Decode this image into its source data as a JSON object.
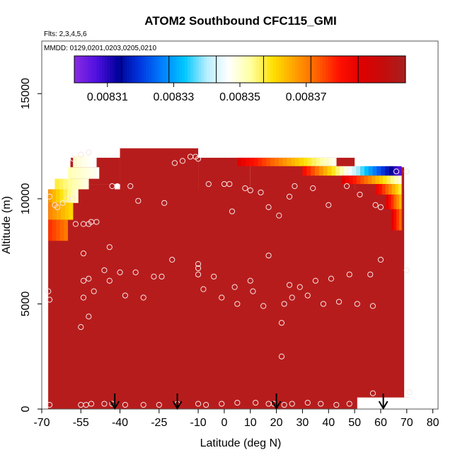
{
  "chart_data": {
    "type": "scatter",
    "title": "ATOM2 Southbound CFC115_GMI",
    "flights_label": "Flts: 2,3,4,5,6",
    "dates_label": "MMDD: 0129,0201,0203,0205,0210",
    "xlabel": "Latitude (deg N)",
    "ylabel": "Altitude (m)",
    "xlim": [
      -70,
      82
    ],
    "ylim": [
      0,
      17500
    ],
    "x_ticks": [
      "-70",
      "-55",
      "-40",
      "-25",
      "-10",
      "0",
      "10",
      "20",
      "30",
      "40",
      "50",
      "60",
      "70",
      "80"
    ],
    "x_tick_values": [
      -70,
      -55,
      -40,
      -25,
      -10,
      0,
      10,
      20,
      30,
      40,
      50,
      60,
      70,
      80
    ],
    "y_ticks": [
      "0",
      "5000",
      "10000",
      "15000"
    ],
    "y_tick_values": [
      0,
      5000,
      10000,
      15000
    ],
    "colorbar": {
      "ticks": [
        "0.00831",
        "0.00833",
        "0.00835",
        "0.00837"
      ],
      "tick_values": [
        0.00831,
        0.00833,
        0.00835,
        0.00837
      ],
      "range": [
        0.0083,
        0.0084
      ],
      "colors": [
        "#8a2be2",
        "#5010e0",
        "#00009a",
        "#0038e0",
        "#0080ff",
        "#00c8ff",
        "#b8eeff",
        "#ffffff",
        "#ffffa0",
        "#ffe000",
        "#ffa000",
        "#ff6000",
        "#ff1000",
        "#e00000",
        "#c40c0c",
        "#a82020"
      ]
    },
    "background_color": "#b71c1c",
    "arrows_x": [
      -42,
      -18,
      20,
      61
    ],
    "sample_points": [
      [
        -67,
        200
      ],
      [
        -55,
        200
      ],
      [
        -53,
        200
      ],
      [
        -51,
        250
      ],
      [
        -46,
        250
      ],
      [
        -43,
        250
      ],
      [
        -38,
        200
      ],
      [
        -31,
        200
      ],
      [
        -25,
        200
      ],
      [
        -18,
        250
      ],
      [
        -10,
        250
      ],
      [
        -7,
        200
      ],
      [
        -1,
        250
      ],
      [
        5,
        300
      ],
      [
        12,
        300
      ],
      [
        17,
        250
      ],
      [
        19,
        250
      ],
      [
        23,
        200
      ],
      [
        26,
        250
      ],
      [
        32,
        300
      ],
      [
        37,
        250
      ],
      [
        43,
        200
      ],
      [
        48,
        250
      ],
      [
        57,
        750
      ],
      [
        71,
        800
      ],
      [
        -67.5,
        5600
      ],
      [
        -67,
        5200
      ],
      [
        -55,
        3900
      ],
      [
        -54,
        5300
      ],
      [
        -52,
        4400
      ],
      [
        -52,
        6200
      ],
      [
        -54,
        6100
      ],
      [
        -54,
        7400
      ],
      [
        -50,
        5600
      ],
      [
        -46,
        6600
      ],
      [
        -44,
        6100
      ],
      [
        -44,
        7700
      ],
      [
        -40,
        6500
      ],
      [
        -38,
        5400
      ],
      [
        -34,
        6500
      ],
      [
        -31,
        5300
      ],
      [
        -27,
        6300
      ],
      [
        -24,
        6300
      ],
      [
        -20,
        7100
      ],
      [
        -10,
        6900
      ],
      [
        -10,
        6700
      ],
      [
        -10,
        6400
      ],
      [
        -8,
        5700
      ],
      [
        -4,
        6300
      ],
      [
        -1,
        5300
      ],
      [
        4,
        5800
      ],
      [
        5,
        5000
      ],
      [
        10,
        6100
      ],
      [
        11,
        5600
      ],
      [
        15,
        4900
      ],
      [
        17,
        7300
      ],
      [
        22,
        4100
      ],
      [
        23,
        5000
      ],
      [
        25,
        5900
      ],
      [
        26,
        5300
      ],
      [
        29,
        5800
      ],
      [
        32,
        5400
      ],
      [
        35,
        6100
      ],
      [
        38,
        5000
      ],
      [
        41,
        6200
      ],
      [
        44,
        5100
      ],
      [
        48,
        6400
      ],
      [
        51,
        5000
      ],
      [
        56,
        6400
      ],
      [
        57,
        4900
      ],
      [
        60,
        7100
      ],
      [
        70,
        6600
      ],
      [
        22,
        2500
      ],
      [
        -67,
        10100
      ],
      [
        -65,
        9700
      ],
      [
        -64,
        9600
      ],
      [
        -62,
        9800
      ],
      [
        -60,
        10000
      ],
      [
        -58,
        10000
      ],
      [
        -57,
        8800
      ],
      [
        -54,
        8800
      ],
      [
        -52,
        8800
      ],
      [
        -51,
        8900
      ],
      [
        -49,
        8900
      ],
      [
        -43,
        10600
      ],
      [
        -41,
        10600
      ],
      [
        -36,
        10600
      ],
      [
        -33,
        9900
      ],
      [
        -23,
        9800
      ],
      [
        -6,
        10700
      ],
      [
        0,
        10700
      ],
      [
        2,
        10700
      ],
      [
        3,
        9400
      ],
      [
        8,
        10500
      ],
      [
        10,
        10400
      ],
      [
        14,
        10300
      ],
      [
        17,
        9600
      ],
      [
        21,
        9200
      ],
      [
        25,
        10100
      ],
      [
        27,
        10600
      ],
      [
        34,
        10500
      ],
      [
        40,
        9700
      ],
      [
        47,
        10600
      ],
      [
        52,
        10200
      ],
      [
        58,
        9700
      ],
      [
        60,
        9600
      ],
      [
        70,
        11300
      ],
      [
        -58,
        11900
      ],
      [
        -55,
        12100
      ],
      [
        -52,
        12200
      ],
      [
        -19,
        11700
      ],
      [
        -16,
        11800
      ],
      [
        -13,
        12000
      ],
      [
        -11,
        12000
      ],
      [
        -10,
        11900
      ],
      [
        66,
        11300
      ],
      [
        70,
        11300
      ]
    ]
  }
}
